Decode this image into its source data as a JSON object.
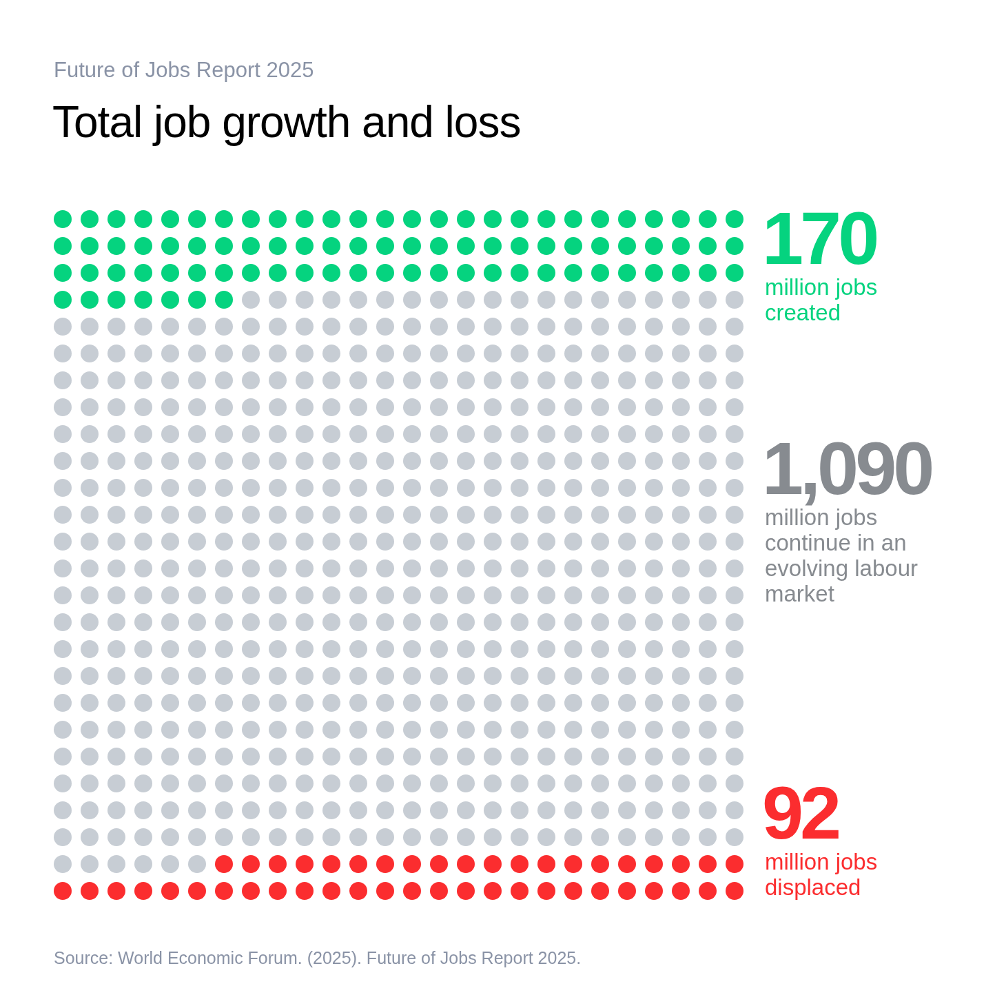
{
  "chart_data": {
    "type": "other",
    "subtitle": "Future of Jobs Report 2025",
    "title": "Total job growth and loss",
    "categories": [
      "million jobs created",
      "million jobs continue in an evolving labour market",
      "million jobs displaced"
    ],
    "values": [
      170,
      1090,
      92
    ],
    "colors": [
      "#05d37f",
      "#c7cdd4",
      "#fb2d2f"
    ],
    "value_labels": [
      "170",
      "1,090",
      "92"
    ],
    "annotations": [
      "Source: World Economic Forum. (2025). Future of Jobs Report 2025."
    ]
  }
}
